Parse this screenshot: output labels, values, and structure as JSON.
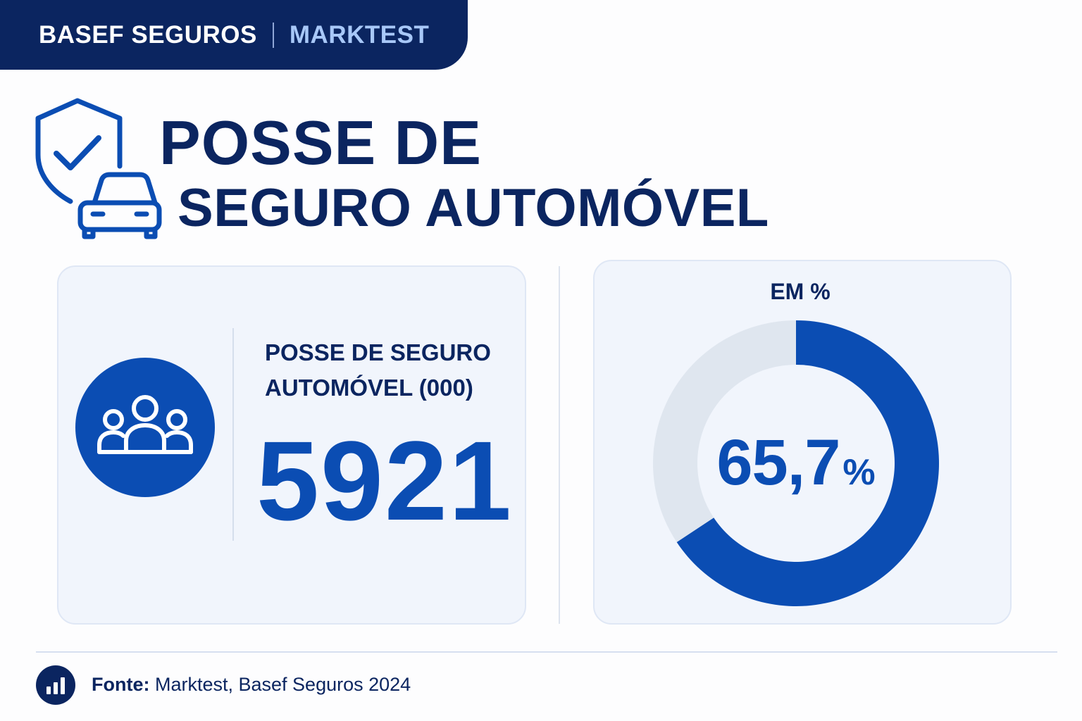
{
  "header": {
    "brand": "BASEF SEGUROS",
    "partner": "MARKTEST"
  },
  "title": {
    "line1": "POSSE DE",
    "line2": "SEGURO AUTOMÓVEL"
  },
  "icons": {
    "hero": "shield-check-car-icon",
    "metric": "people-group-icon",
    "footer": "bar-chart-icon"
  },
  "metric": {
    "label_line1": "POSSE DE SEGURO",
    "label_line2": "AUTOMÓVEL (000)",
    "value": "5921"
  },
  "chart_data": {
    "type": "pie",
    "title": "EM %",
    "slices": [
      {
        "value": 65.7,
        "color": "#0b4db3"
      },
      {
        "value": 34.3,
        "color": "#dfe6ef"
      }
    ],
    "center_value": "65,7",
    "center_unit": "%"
  },
  "footer": {
    "source_label": "Fonte:",
    "source_text": " Marktest, Basef Seguros 2024"
  },
  "colors": {
    "navy": "#0b2560",
    "accent": "#0b4db3",
    "track": "#dfe6ef"
  }
}
